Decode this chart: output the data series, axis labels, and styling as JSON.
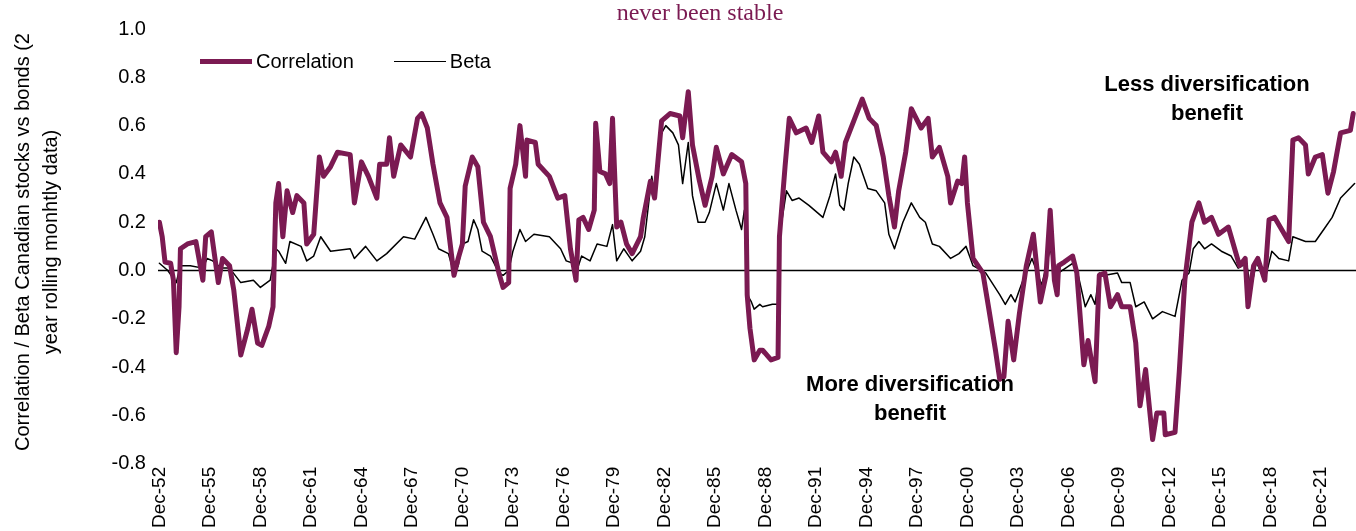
{
  "chart_data": {
    "type": "line",
    "title": "never been stable",
    "ylabel": "Correlation / Beta Canadian stocks vs bonds (2 year rolling monhtly data)",
    "xlim": [
      "1952-11",
      "2024-01"
    ],
    "xticks": [
      {
        "value": "1952-12",
        "label": "Dec-52"
      },
      {
        "value": "1955-12",
        "label": "Dec-55"
      },
      {
        "value": "1958-12",
        "label": "Dec-58"
      },
      {
        "value": "1961-12",
        "label": "Dec-61"
      },
      {
        "value": "1964-12",
        "label": "Dec-64"
      },
      {
        "value": "1967-12",
        "label": "Dec-67"
      },
      {
        "value": "1970-12",
        "label": "Dec-70"
      },
      {
        "value": "1973-12",
        "label": "Dec-73"
      },
      {
        "value": "1976-12",
        "label": "Dec-76"
      },
      {
        "value": "1979-12",
        "label": "Dec-79"
      },
      {
        "value": "1982-12",
        "label": "Dec-82"
      },
      {
        "value": "1985-12",
        "label": "Dec-85"
      },
      {
        "value": "1988-12",
        "label": "Dec-88"
      },
      {
        "value": "1991-12",
        "label": "Dec-91"
      },
      {
        "value": "1994-12",
        "label": "Dec-94"
      },
      {
        "value": "1997-12",
        "label": "Dec-97"
      },
      {
        "value": "2000-12",
        "label": "Dec-00"
      },
      {
        "value": "2003-12",
        "label": "Dec-03"
      },
      {
        "value": "2006-12",
        "label": "Dec-06"
      },
      {
        "value": "2009-12",
        "label": "Dec-09"
      },
      {
        "value": "2012-12",
        "label": "Dec-12"
      },
      {
        "value": "2015-12",
        "label": "Dec-15"
      },
      {
        "value": "2018-12",
        "label": "Dec-18"
      },
      {
        "value": "2021-12",
        "label": "Dec-21"
      }
    ],
    "ylim": [
      -0.8,
      1.0
    ],
    "yticks": [
      -0.8,
      -0.6,
      -0.4,
      -0.2,
      {
        "value": 0,
        "label": "0.0"
      },
      0.2,
      0.4,
      0.6,
      0.8,
      {
        "value": 1.0,
        "label": "1.0"
      }
    ],
    "grid": false,
    "legend": "top left",
    "marker": "none",
    "line_style": "solid",
    "ref_lines": [
      {
        "axis": "y",
        "value": 0,
        "color": "#000000"
      }
    ],
    "annotations": [
      "More diversification benefit",
      "Less diversification benefit"
    ],
    "series": [
      {
        "name": "Correlation",
        "color": "#7b1a52",
        "x": [
          "1952-12",
          "1953-02",
          "1953-04",
          "1953-08",
          "1953-10",
          "1953-12",
          "1954-02",
          "1954-03",
          "1954-08",
          "1955-02",
          "1955-07",
          "1955-09",
          "1956-01",
          "1956-06",
          "1956-09",
          "1957-02",
          "1957-05",
          "1957-10",
          "1958-03",
          "1958-06",
          "1958-10",
          "1959-01",
          "1959-06",
          "1959-09",
          "1959-11",
          "1960-01",
          "1960-04",
          "1960-07",
          "1960-11",
          "1961-02",
          "1961-07",
          "1961-09",
          "1962-02",
          "1962-06",
          "1962-09",
          "1963-02",
          "1963-07",
          "1964-04",
          "1964-07",
          "1964-12",
          "1965-05",
          "1965-11",
          "1966-01",
          "1966-06",
          "1966-08",
          "1966-11",
          "1967-04",
          "1967-11",
          "1968-04",
          "1968-07",
          "1968-11",
          "1969-03",
          "1969-08",
          "1970-01",
          "1970-06",
          "1970-09",
          "1970-12",
          "1971-02",
          "1971-07",
          "1971-11",
          "1972-03",
          "1972-08",
          "1973-02",
          "1973-05",
          "1973-09",
          "1973-10",
          "1974-02",
          "1974-05",
          "1974-09",
          "1974-10",
          "1975-04",
          "1975-06",
          "1976-02",
          "1976-08",
          "1977-01",
          "1977-05",
          "1977-09",
          "1977-11",
          "1978-02",
          "1978-06",
          "1978-10",
          "1978-11",
          "1979-02",
          "1979-06",
          "1979-09",
          "1979-11",
          "1980-02",
          "1980-05",
          "1980-09",
          "1981-01",
          "1981-07",
          "1981-09",
          "1982-02",
          "1982-05",
          "1982-10",
          "1983-04",
          "1983-11",
          "1984-01",
          "1984-05",
          "1984-08",
          "1985-01",
          "1985-05",
          "1985-10",
          "1986-01",
          "1986-06",
          "1986-12",
          "1987-07",
          "1987-10",
          "1987-11",
          "1988-01",
          "1988-04",
          "1988-08",
          "1988-10",
          "1989-04",
          "1989-09",
          "1989-10",
          "1990-02",
          "1990-05",
          "1990-10",
          "1991-05",
          "1991-09",
          "1992-02",
          "1992-05",
          "1992-11",
          "1993-02",
          "1993-06",
          "1993-09",
          "1994-03",
          "1994-09",
          "1995-02",
          "1995-07",
          "1995-12",
          "1996-04",
          "1996-08",
          "1996-11",
          "1997-04",
          "1997-08",
          "1998-03",
          "1998-08",
          "1998-11",
          "1999-04",
          "1999-10",
          "1999-12",
          "2000-05",
          "2000-08",
          "2000-10",
          "2000-12",
          "2001-04",
          "2001-11",
          "2002-03",
          "2002-08",
          "2002-11",
          "2003-02",
          "2003-05",
          "2003-09",
          "2004-01",
          "2004-06",
          "2004-11",
          "2005-04",
          "2005-08",
          "2005-11",
          "2006-02",
          "2006-04",
          "2006-05",
          "2006-09",
          "2007-03",
          "2007-06",
          "2007-11",
          "2008-02",
          "2008-07",
          "2008-10",
          "2009-02",
          "2009-06",
          "2009-11",
          "2010-02",
          "2010-08",
          "2010-12",
          "2011-03",
          "2011-07",
          "2011-12",
          "2012-03",
          "2012-08",
          "2012-09",
          "2013-04",
          "2013-07",
          "2013-11",
          "2014-04",
          "2014-09",
          "2015-01",
          "2015-06",
          "2015-11",
          "2016-06",
          "2016-11",
          "2017-02",
          "2017-06",
          "2017-08",
          "2017-12",
          "2018-03",
          "2018-08",
          "2018-11",
          "2019-03",
          "2019-08",
          "2020-01",
          "2020-04",
          "2020-08",
          "2021-01",
          "2021-03",
          "2021-08",
          "2022-01",
          "2022-05",
          "2022-09",
          "2023-02",
          "2023-09",
          "2023-11"
        ],
        "values": [
          0.2,
          0.14,
          0.035,
          0.03,
          -0.04,
          -0.34,
          -0.15,
          0.09,
          0.11,
          0.12,
          -0.04,
          0.14,
          0.16,
          -0.05,
          0.05,
          0.02,
          -0.08,
          -0.35,
          -0.24,
          -0.16,
          -0.3,
          -0.31,
          -0.23,
          -0.15,
          0.28,
          0.36,
          0.14,
          0.33,
          0.24,
          0.31,
          0.28,
          0.11,
          0.15,
          0.47,
          0.39,
          0.43,
          0.49,
          0.48,
          0.28,
          0.45,
          0.39,
          0.3,
          0.44,
          0.44,
          0.55,
          0.39,
          0.52,
          0.47,
          0.63,
          0.65,
          0.59,
          0.44,
          0.28,
          0.22,
          -0.02,
          0.05,
          0.11,
          0.35,
          0.47,
          0.43,
          0.2,
          0.14,
          -0.01,
          -0.07,
          -0.05,
          0.34,
          0.44,
          0.6,
          0.39,
          0.54,
          0.53,
          0.44,
          0.39,
          0.3,
          0.31,
          0.09,
          -0.04,
          0.21,
          0.22,
          0.17,
          0.25,
          0.61,
          0.41,
          0.4,
          0.36,
          0.63,
          0.18,
          0.2,
          0.11,
          0.07,
          0.14,
          0.22,
          0.37,
          0.3,
          0.62,
          0.65,
          0.64,
          0.55,
          0.74,
          0.52,
          0.37,
          0.27,
          0.39,
          0.51,
          0.4,
          0.48,
          0.45,
          0.36,
          -0.1,
          -0.24,
          -0.37,
          -0.33,
          -0.33,
          -0.37,
          -0.36,
          0.14,
          0.43,
          0.63,
          0.57,
          0.59,
          0.53,
          0.64,
          0.49,
          0.45,
          0.49,
          0.39,
          0.53,
          0.62,
          0.71,
          0.63,
          0.6,
          0.47,
          0.31,
          0.18,
          0.33,
          0.49,
          0.67,
          0.59,
          0.63,
          0.47,
          0.51,
          0.39,
          0.28,
          0.37,
          0.36,
          0.47,
          0.28,
          0.05,
          -0.01,
          -0.15,
          -0.33,
          -0.45,
          -0.44,
          -0.21,
          -0.37,
          -0.18,
          0.02,
          0.15,
          -0.13,
          -0.02,
          0.25,
          -0.04,
          -0.1,
          0.02,
          0.035,
          0.06,
          -0.01,
          -0.39,
          -0.29,
          -0.46,
          -0.02,
          -0.01,
          -0.15,
          -0.1,
          -0.15,
          -0.15,
          -0.3,
          -0.56,
          -0.41,
          -0.7,
          -0.59,
          -0.59,
          -0.68,
          -0.67,
          -0.42,
          -0.04,
          0.2,
          0.28,
          0.2,
          0.22,
          0.15,
          0.18,
          0.08,
          0.02,
          0.05,
          -0.15,
          0.02,
          0.05,
          -0.04,
          0.21,
          0.22,
          0.17,
          0.12,
          0.54,
          0.55,
          0.52,
          0.4,
          0.47,
          0.48,
          0.32,
          0.41,
          0.57,
          0.58,
          0.65
        ]
      },
      {
        "name": "Beta",
        "color": "#000000",
        "x": [
          "1952-12",
          "1953-06",
          "1953-12",
          "1954-03",
          "1954-10",
          "1955-07",
          "1955-10",
          "1956-02",
          "1956-08",
          "1957-02",
          "1957-10",
          "1958-07",
          "1958-12",
          "1959-07",
          "1959-11",
          "1960-01",
          "1960-06",
          "1960-09",
          "1961-05",
          "1961-09",
          "1962-02",
          "1962-07",
          "1963-02",
          "1964-04",
          "1964-07",
          "1965-03",
          "1965-11",
          "1966-06",
          "1967-06",
          "1968-02",
          "1968-10",
          "1969-03",
          "1969-07",
          "1970-02",
          "1970-06",
          "1970-09",
          "1970-12",
          "1971-04",
          "1971-08",
          "1971-11",
          "1972-02",
          "1972-08",
          "1973-02",
          "1973-05",
          "1973-09",
          "1973-12",
          "1974-05",
          "1974-09",
          "1975-03",
          "1976-02",
          "1976-10",
          "1977-02",
          "1977-07",
          "1977-09",
          "1978-01",
          "1978-07",
          "1978-12",
          "1979-07",
          "1979-11",
          "1980-02",
          "1980-07",
          "1981-01",
          "1981-07",
          "1981-10",
          "1982-03",
          "1982-05",
          "1982-09",
          "1983-01",
          "1983-06",
          "1983-10",
          "1984-01",
          "1984-05",
          "1984-08",
          "1984-12",
          "1985-05",
          "1985-08",
          "1986-01",
          "1986-06",
          "1986-10",
          "1987-03",
          "1987-07",
          "1987-09",
          "1987-11",
          "1988-02",
          "1988-04",
          "1988-08",
          "1988-10",
          "1989-05",
          "1989-09",
          "1989-10",
          "1990-03",
          "1990-07",
          "1990-12",
          "1991-07",
          "1992-05",
          "1992-10",
          "1993-02",
          "1993-05",
          "1993-08",
          "1993-11",
          "1994-03",
          "1994-07",
          "1995-01",
          "1995-07",
          "1996-01",
          "1996-04",
          "1996-08",
          "1997-02",
          "1997-08",
          "1998-02",
          "1998-06",
          "1998-11",
          "1999-04",
          "1999-12",
          "2000-06",
          "2000-11",
          "2001-04",
          "2002-01",
          "2002-11",
          "2003-03",
          "2003-07",
          "2003-10",
          "2004-03",
          "2004-10",
          "2005-05",
          "2005-11",
          "2006-03",
          "2006-05",
          "2006-10",
          "2007-03",
          "2007-07",
          "2007-12",
          "2008-04",
          "2008-07",
          "2008-10",
          "2009-02",
          "2009-11",
          "2010-02",
          "2010-08",
          "2010-12",
          "2011-06",
          "2011-12",
          "2012-07",
          "2013-04",
          "2013-09",
          "2014-02",
          "2014-05",
          "2014-09",
          "2015-01",
          "2015-06",
          "2016-01",
          "2016-08",
          "2017-01",
          "2017-07",
          "2017-10",
          "2018-02",
          "2018-08",
          "2019-01",
          "2019-06",
          "2020-01",
          "2020-04",
          "2021-01",
          "2021-08",
          "2022-02",
          "2022-08",
          "2023-02",
          "2023-07",
          "2023-12"
        ],
        "values": [
          0.03,
          0.0,
          -0.05,
          0.02,
          0.02,
          0.01,
          0.05,
          0.04,
          0.01,
          0.01,
          -0.05,
          -0.04,
          -0.07,
          -0.04,
          0.09,
          0.08,
          0.03,
          0.12,
          0.1,
          0.04,
          0.06,
          0.14,
          0.08,
          0.09,
          0.05,
          0.1,
          0.04,
          0.07,
          0.14,
          0.13,
          0.22,
          0.15,
          0.09,
          0.07,
          -0.01,
          0.02,
          0.11,
          0.12,
          0.21,
          0.17,
          0.08,
          0.06,
          -0.01,
          -0.02,
          0.0,
          0.08,
          0.17,
          0.12,
          0.15,
          0.14,
          0.09,
          0.04,
          0.03,
          -0.01,
          0.06,
          0.04,
          0.11,
          0.1,
          0.19,
          0.04,
          0.09,
          0.04,
          0.08,
          0.14,
          0.39,
          0.31,
          0.56,
          0.6,
          0.57,
          0.52,
          0.36,
          0.53,
          0.31,
          0.2,
          0.2,
          0.24,
          0.36,
          0.25,
          0.36,
          0.25,
          0.17,
          0.25,
          -0.1,
          -0.13,
          -0.16,
          -0.14,
          -0.15,
          -0.14,
          -0.14,
          0.14,
          0.33,
          0.29,
          0.3,
          0.27,
          0.22,
          0.31,
          0.4,
          0.27,
          0.25,
          0.36,
          0.47,
          0.44,
          0.34,
          0.33,
          0.28,
          0.15,
          0.09,
          0.2,
          0.28,
          0.22,
          0.2,
          0.11,
          0.1,
          0.05,
          0.07,
          0.1,
          0.02,
          -0.01,
          -0.1,
          -0.14,
          -0.1,
          -0.13,
          -0.05,
          0.05,
          -0.06,
          0.09,
          -0.01,
          -0.01,
          0.01,
          0.03,
          -0.02,
          -0.15,
          -0.1,
          -0.14,
          -0.01,
          -0.02,
          -0.01,
          -0.05,
          -0.05,
          -0.15,
          -0.13,
          -0.2,
          -0.17,
          -0.19,
          -0.04,
          -0.01,
          0.09,
          0.12,
          0.09,
          0.11,
          0.08,
          0.06,
          0.01,
          0.03,
          -0.08,
          0.035,
          -0.04,
          0.08,
          0.05,
          0.04,
          0.14,
          0.12,
          0.12,
          0.17,
          0.22,
          0.3,
          0.33,
          0.36
        ]
      }
    ]
  }
}
